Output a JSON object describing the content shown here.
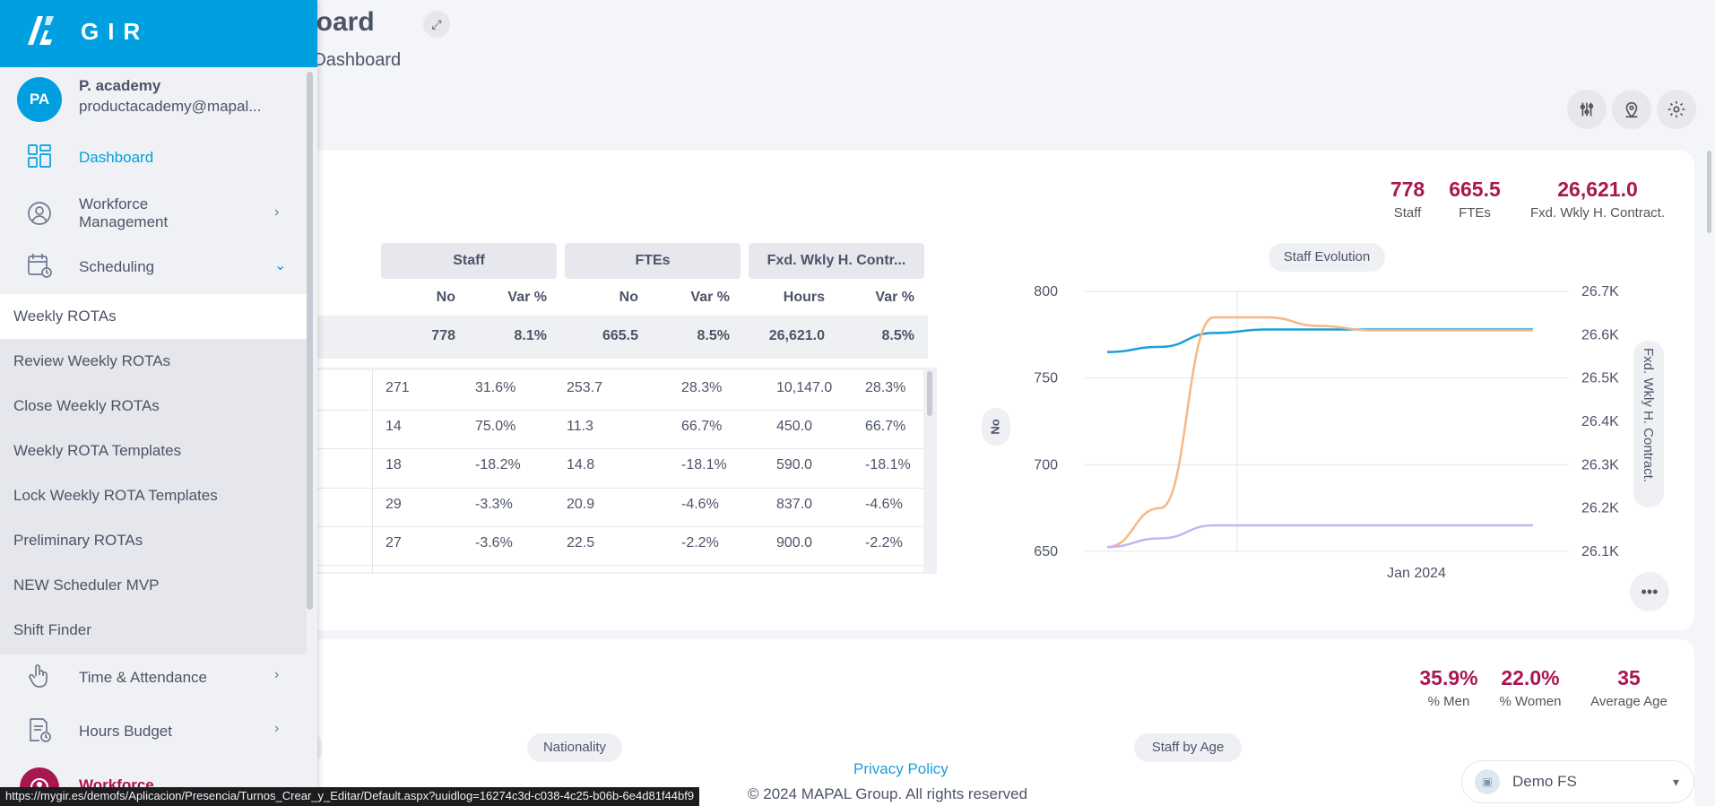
{
  "page": {
    "title": "nboard",
    "subtitle": "rce Dashboard"
  },
  "kpis_top": [
    {
      "value": "778",
      "label": "Staff"
    },
    {
      "value": "665.5",
      "label": "FTEs"
    },
    {
      "value": "26,621.0",
      "label": "Fxd. Wkly H. Contract."
    }
  ],
  "kpis_bottom": [
    {
      "value": "35.9%",
      "label": "% Men"
    },
    {
      "value": "22.0%",
      "label": "% Women"
    },
    {
      "value": "35",
      "label": "Average Age"
    }
  ],
  "table": {
    "groups": [
      "Staff",
      "FTEs",
      "Fxd. Wkly H. Contr..."
    ],
    "subheaders": [
      "No",
      "Var %",
      "No",
      "Var %",
      "Hours",
      "Var %"
    ],
    "total": [
      "778",
      "8.1%",
      "665.5",
      "8.5%",
      "26,621.0",
      "8.5%"
    ],
    "rows": [
      [
        "271",
        "31.6%",
        "253.7",
        "28.3%",
        "10,147.0",
        "28.3%"
      ],
      [
        "14",
        "75.0%",
        "11.3",
        "66.7%",
        "450.0",
        "66.7%"
      ],
      [
        "18",
        "-18.2%",
        "14.8",
        "-18.1%",
        "590.0",
        "-18.1%"
      ],
      [
        "29",
        "-3.3%",
        "20.9",
        "-4.6%",
        "837.0",
        "-4.6%"
      ],
      [
        "27",
        "-3.6%",
        "22.5",
        "-2.2%",
        "900.0",
        "-2.2%"
      ]
    ]
  },
  "chart_data": {
    "type": "line",
    "title": "Staff Evolution",
    "xlabel": "",
    "ylabel": "No",
    "y2label": "Fxd. Wkly H. Contract.",
    "x_tick": "Jan 2024",
    "y_ticks": [
      "800",
      "750",
      "700",
      "650"
    ],
    "y2_ticks": [
      "26.7K",
      "26.6K",
      "26.5K",
      "26.4K",
      "26.3K",
      "26.2K",
      "26.1K"
    ],
    "ylim": [
      650,
      800
    ],
    "y2lim": [
      26100,
      26700
    ],
    "series": [
      {
        "axis": "left",
        "color": "#1aa0d8",
        "values": [
          765,
          768,
          776,
          778,
          778,
          778,
          778,
          778,
          778
        ]
      },
      {
        "axis": "right",
        "color": "#f5b886",
        "values": [
          26110,
          26200,
          26640,
          26640,
          26620,
          26610,
          26610,
          26610,
          26610
        ]
      },
      {
        "axis": "right",
        "color": "#c4b5f0",
        "values": [
          26110,
          26130,
          26160,
          26160,
          26160,
          26160,
          26160,
          26160,
          26160
        ]
      }
    ]
  },
  "charts_bottom": {
    "nationality_label": "Nationality",
    "age_label": "Staff by Age"
  },
  "footer": {
    "privacy": "Privacy Policy",
    "copyright": "© 2024 MAPAL Group. All rights reserved"
  },
  "user_select": {
    "value": "Demo FS"
  },
  "sidebar": {
    "brand": "GIR",
    "avatar": "PA",
    "user_name": "P. academy",
    "user_email": "productacademy@mapal...",
    "items": [
      {
        "label": "Dashboard",
        "icon": "dashboard-icon"
      },
      {
        "label": "Workforce Management",
        "icon": "user-circle-icon"
      },
      {
        "label": "Scheduling",
        "icon": "calendar-clock-icon"
      },
      {
        "label": "Time & Attendance",
        "icon": "hand-pointer-icon"
      },
      {
        "label": "Hours Budget",
        "icon": "document-clock-icon"
      }
    ],
    "scheduling_submenu": [
      "Weekly ROTAs",
      "Review Weekly ROTAs",
      "Close Weekly ROTAs",
      "Weekly ROTA Templates",
      "Lock Weekly ROTA Templates",
      "Preliminary ROTAs",
      "NEW Scheduler MVP",
      "Shift Finder"
    ],
    "workforce_label": "Workforce"
  },
  "statusbar": {
    "url": "https://mygir.es/demofs/Aplicacion/Presencia/Turnos_Crear_y_Editar/Default.aspx?uuidlog=16274c3d-c038-4c25-b06b-6e4d81f44bf9"
  }
}
